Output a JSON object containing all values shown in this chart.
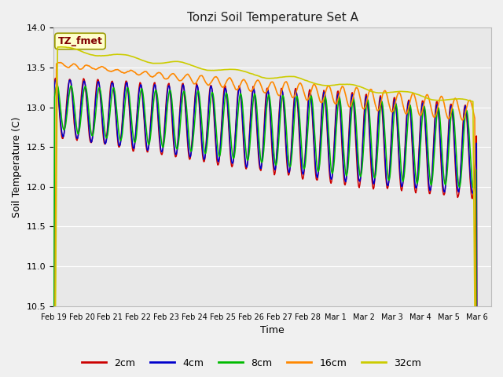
{
  "title": "Tonzi Soil Temperature Set A",
  "xlabel": "Time",
  "ylabel": "Soil Temperature (C)",
  "ylim": [
    10.5,
    14.0
  ],
  "tick_labels": [
    "Feb 19",
    "Feb 20",
    "Feb 21",
    "Feb 22",
    "Feb 23",
    "Feb 24",
    "Feb 25",
    "Feb 26",
    "Feb 27",
    "Feb 28",
    "Mar 1",
    "Mar 2",
    "Mar 3",
    "Mar 4",
    "Mar 5",
    "Mar 6"
  ],
  "colors": {
    "2cm": "#cc0000",
    "4cm": "#0000cc",
    "8cm": "#00bb00",
    "16cm": "#ff8800",
    "32cm": "#cccc00"
  },
  "legend_label": "TZ_fmet",
  "legend_box_color": "#ffffcc",
  "legend_box_edge": "#999900",
  "plot_bg": "#e8e8e8",
  "fig_bg": "#f0f0f0",
  "grid_color": "#ffffff"
}
